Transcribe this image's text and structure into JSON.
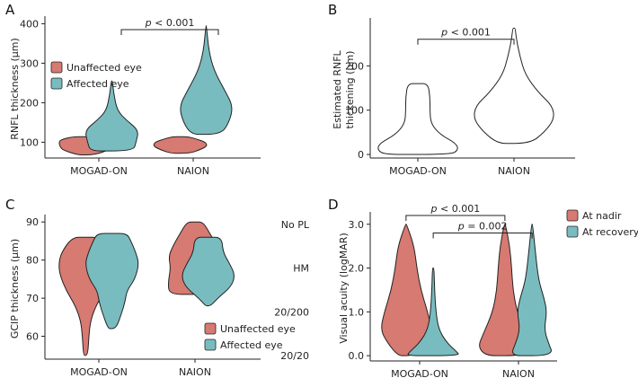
{
  "colors": {
    "red": "#d67a72",
    "teal": "#79bcbf",
    "white": "#ffffff"
  },
  "chart_data": [
    {
      "panel": "A",
      "type": "violin",
      "ylabel": "RNFL thickness (µm)",
      "xlabel": "",
      "categories": [
        "MOGAD-ON",
        "NAION"
      ],
      "ylim": [
        60,
        410
      ],
      "yticks": [
        100,
        200,
        300,
        400
      ],
      "ytick_labels": [
        "100",
        "200",
        "300",
        "400"
      ],
      "legend": {
        "position": "top-left",
        "items": [
          {
            "label": "Unaffected eye",
            "color": "#d67a72"
          },
          {
            "label": "Affected eye",
            "color": "#79bcbf"
          }
        ]
      },
      "series": [
        {
          "name": "Unaffected eye",
          "color": "#d67a72",
          "violins": [
            {
              "category": "MOGAD-ON",
              "offset": -0.25,
              "min": 68,
              "max": 114,
              "profile": [
                [
                  68,
                  0.3
                ],
                [
                  80,
                  0.85
                ],
                [
                  88,
                  0.95
                ],
                [
                  98,
                  1.0
                ],
                [
                  106,
                  0.95
                ],
                [
                  114,
                  0.5
                ]
              ]
            },
            {
              "category": "NAION",
              "offset": -0.25,
              "min": 72,
              "max": 114,
              "profile": [
                [
                  72,
                  0.35
                ],
                [
                  80,
                  0.7
                ],
                [
                  90,
                  1.0
                ],
                [
                  100,
                  0.95
                ],
                [
                  108,
                  0.6
                ],
                [
                  114,
                  0.3
                ]
              ]
            }
          ]
        },
        {
          "name": "Affected eye",
          "color": "#79bcbf",
          "violins": [
            {
              "category": "MOGAD-ON",
              "offset": 0.25,
              "min": 78,
              "max": 255,
              "profile": [
                [
                  78,
                  0.8
                ],
                [
                  100,
                  0.9
                ],
                [
                  130,
                  1.0
                ],
                [
                  155,
                  0.55
                ],
                [
                  180,
                  0.2
                ],
                [
                  220,
                  0.08
                ],
                [
                  255,
                  0.02
                ]
              ]
            },
            {
              "category": "NAION",
              "offset": 0.25,
              "min": 120,
              "max": 395,
              "profile": [
                [
                  120,
                  0.55
                ],
                [
                  150,
                  0.85
                ],
                [
                  190,
                  1.0
                ],
                [
                  230,
                  0.7
                ],
                [
                  280,
                  0.3
                ],
                [
                  330,
                  0.1
                ],
                [
                  395,
                  0.01
                ]
              ]
            }
          ]
        }
      ],
      "annotations": [
        {
          "text": "p < 0.001",
          "from": "MOGAD-ON",
          "to": "NAION",
          "y": 385
        }
      ]
    },
    {
      "panel": "B",
      "type": "violin",
      "ylabel": "Estimated RNFL thickening (µm)",
      "xlabel": "",
      "categories": [
        "MOGAD-ON",
        "NAION"
      ],
      "ylim": [
        -8,
        300
      ],
      "yticks": [
        0,
        100,
        200
      ],
      "ytick_labels": [
        "0",
        "100",
        "200"
      ],
      "series": [
        {
          "name": "Estimated thickening",
          "color": "#ffffff",
          "violins": [
            {
              "category": "MOGAD-ON",
              "offset": 0,
              "min": 0,
              "max": 160,
              "profile": [
                [
                  0,
                  0.82
                ],
                [
                  10,
                  1.0
                ],
                [
                  25,
                  0.95
                ],
                [
                  45,
                  0.55
                ],
                [
                  70,
                  0.32
                ],
                [
                  100,
                  0.3
                ],
                [
                  130,
                  0.3
                ],
                [
                  160,
                  0.25
                ]
              ]
            },
            {
              "category": "NAION",
              "offset": 0,
              "min": 25,
              "max": 285,
              "profile": [
                [
                  25,
                  0.4
                ],
                [
                  50,
                  0.75
                ],
                [
                  80,
                  1.0
                ],
                [
                  110,
                  0.95
                ],
                [
                  140,
                  0.6
                ],
                [
                  180,
                  0.28
                ],
                [
                  220,
                  0.15
                ],
                [
                  260,
                  0.06
                ],
                [
                  285,
                  0.03
                ]
              ]
            }
          ]
        }
      ],
      "annotations": [
        {
          "text": "p < 0.001",
          "from": "MOGAD-ON",
          "to": "NAION",
          "y": 260
        }
      ]
    },
    {
      "panel": "C",
      "type": "violin",
      "ylabel": "GCIP thickness (µm)",
      "xlabel": "",
      "categories": [
        "MOGAD-ON",
        "NAION"
      ],
      "ylim": [
        54,
        91
      ],
      "yticks": [
        60,
        70,
        80,
        90
      ],
      "ytick_labels": [
        "60",
        "70",
        "80",
        "90"
      ],
      "legend": {
        "position": "bottom-right",
        "items": [
          {
            "label": "Unaffected eye",
            "color": "#d67a72"
          },
          {
            "label": "Affected eye",
            "color": "#79bcbf"
          }
        ]
      },
      "series": [
        {
          "name": "Unaffected eye",
          "color": "#d67a72",
          "violins": [
            {
              "category": "MOGAD-ON",
              "offset": -0.25,
              "min": 55,
              "max": 86,
              "profile": [
                [
                  55,
                  0.08
                ],
                [
                  60,
                  0.12
                ],
                [
                  64,
                  0.18
                ],
                [
                  68,
                  0.38
                ],
                [
                  72,
                  0.72
                ],
                [
                  76,
                  0.95
                ],
                [
                  79,
                  1.0
                ],
                [
                  82,
                  0.9
                ],
                [
                  86,
                  0.5
                ]
              ]
            },
            {
              "category": "NAION",
              "offset": 0,
              "min": 71,
              "max": 90,
              "profile": [
                [
                  71,
                  0.95
                ],
                [
                  74,
                  1.0
                ],
                [
                  78,
                  0.9
                ],
                [
                  81,
                  0.98
                ],
                [
                  84,
                  0.8
                ],
                [
                  87,
                  0.55
                ],
                [
                  90,
                  0.3
                ]
              ]
            }
          ]
        },
        {
          "name": "Affected eye",
          "color": "#79bcbf",
          "violins": [
            {
              "category": "MOGAD-ON",
              "offset": 0.25,
              "min": 62,
              "max": 87,
              "profile": [
                [
                  62,
                  0.15
                ],
                [
                  66,
                  0.35
                ],
                [
                  69,
                  0.48
                ],
                [
                  72,
                  0.55
                ],
                [
                  75,
                  0.85
                ],
                [
                  79,
                  1.0
                ],
                [
                  82,
                  0.88
                ],
                [
                  85,
                  0.7
                ],
                [
                  87,
                  0.55
                ]
              ]
            },
            {
              "category": "NAION",
              "offset": 0.25,
              "min": 68,
              "max": 86,
              "profile": [
                [
                  68,
                  0.1
                ],
                [
                  70,
                  0.35
                ],
                [
                  73,
                  0.85
                ],
                [
                  76,
                  1.0
                ],
                [
                  79,
                  0.8
                ],
                [
                  82,
                  0.55
                ],
                [
                  86,
                  0.5
                ]
              ]
            }
          ]
        }
      ]
    },
    {
      "panel": "D",
      "type": "violin",
      "ylabel": "Visual acuity (logMAR)",
      "xlabel": "",
      "categories": [
        "MOGAD-ON",
        "NAION"
      ],
      "ylim": [
        -0.12,
        3.2
      ],
      "yticks": [
        0.0,
        1.0,
        2.0,
        3.0
      ],
      "ytick_labels": [
        "0.0",
        "1.0",
        "2.0",
        "3.0"
      ],
      "ytick_labels_left": [
        "20/20",
        "20/200",
        "HM",
        "No PL"
      ],
      "legend": {
        "position": "top-right",
        "items": [
          {
            "label": "At nadir",
            "color": "#d67a72"
          },
          {
            "label": "At recovery",
            "color": "#79bcbf"
          }
        ]
      },
      "series": [
        {
          "name": "At nadir",
          "color": "#d67a72",
          "violins": [
            {
              "category": "MOGAD-ON",
              "offset": -0.25,
              "min": 0.0,
              "max": 3.0,
              "profile": [
                [
                  0,
                  0.3
                ],
                [
                  0.3,
                  0.7
                ],
                [
                  0.6,
                  0.95
                ],
                [
                  1.0,
                  0.8
                ],
                [
                  1.5,
                  0.55
                ],
                [
                  2.0,
                  0.4
                ],
                [
                  2.5,
                  0.3
                ],
                [
                  3.0,
                  0.02
                ]
              ]
            },
            {
              "category": "NAION",
              "offset": -0.25,
              "min": 0.0,
              "max": 3.0,
              "profile": [
                [
                  0,
                  0.7
                ],
                [
                  0.2,
                  1.0
                ],
                [
                  0.5,
                  0.8
                ],
                [
                  1.0,
                  0.45
                ],
                [
                  1.5,
                  0.3
                ],
                [
                  2.0,
                  0.25
                ],
                [
                  2.5,
                  0.18
                ],
                [
                  3.0,
                  0.02
                ]
              ]
            }
          ]
        },
        {
          "name": "At recovery",
          "color": "#79bcbf",
          "violins": [
            {
              "category": "MOGAD-ON",
              "offset": 0.25,
              "min": 0.0,
              "max": 2.0,
              "profile": [
                [
                  0,
                  1.0
                ],
                [
                  0.1,
                  0.85
                ],
                [
                  0.3,
                  0.5
                ],
                [
                  0.6,
                  0.2
                ],
                [
                  1.0,
                  0.1
                ],
                [
                  1.5,
                  0.05
                ],
                [
                  2.0,
                  0.03
                ]
              ]
            },
            {
              "category": "NAION",
              "offset": 0.25,
              "min": 0.0,
              "max": 3.0,
              "profile": [
                [
                  0,
                  0.8
                ],
                [
                  0.3,
                  0.6
                ],
                [
                  0.6,
                  0.45
                ],
                [
                  1.0,
                  0.55
                ],
                [
                  1.3,
                  0.45
                ],
                [
                  1.7,
                  0.25
                ],
                [
                  2.2,
                  0.15
                ],
                [
                  3.0,
                  0.02
                ]
              ]
            }
          ]
        }
      ],
      "annotations": [
        {
          "text": "p < 0.001",
          "from": "MOGAD-ON",
          "to": "NAION",
          "y": 3.2,
          "offsets": [
            -0.25,
            -0.25
          ]
        },
        {
          "text": "p = 0.002",
          "from": "MOGAD-ON",
          "to": "NAION",
          "y": 2.8,
          "offsets": [
            0.25,
            0.25
          ]
        }
      ]
    }
  ]
}
